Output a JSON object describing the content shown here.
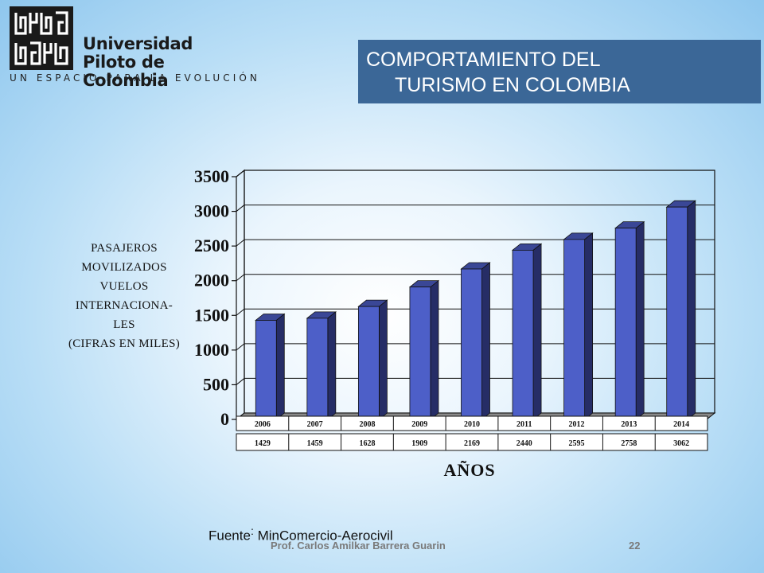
{
  "logo": {
    "name_line1": "Universidad",
    "name_line2": "Piloto de Colombia",
    "tagline": "UN ESPACIO PARA LA EVOLUCIÓN"
  },
  "title": {
    "line1": "COMPORTAMIENTO DEL",
    "line2": "TURISMO EN COLOMBIA"
  },
  "chart_data": {
    "type": "bar",
    "categories": [
      "2006",
      "2007",
      "2008",
      "2009",
      "2010",
      "2011",
      "2012",
      "2013",
      "2014"
    ],
    "values": [
      1429,
      1459,
      1628,
      1909,
      2169,
      2440,
      2595,
      2758,
      3062
    ],
    "ylim": [
      0,
      3500
    ],
    "yticks": [
      0,
      500,
      1000,
      1500,
      2000,
      2500,
      3000,
      3500
    ],
    "ylabel_lines": [
      "PASAJEROS",
      "MOVILIZADOS",
      "VUELOS",
      "INTERNACIONA-",
      "LES",
      "(CIFRAS EN MILES)"
    ],
    "xlabel": "AÑOS",
    "grid": true,
    "bar_color": "#4d5fc8",
    "data_table": true
  },
  "footer": {
    "source_label": "Fuente",
    "source_colon": ":",
    "source_value": " MinComercio-Aerocivil",
    "author": "Prof. Carlos Amilkar Barrera Guarin",
    "page": "22"
  }
}
